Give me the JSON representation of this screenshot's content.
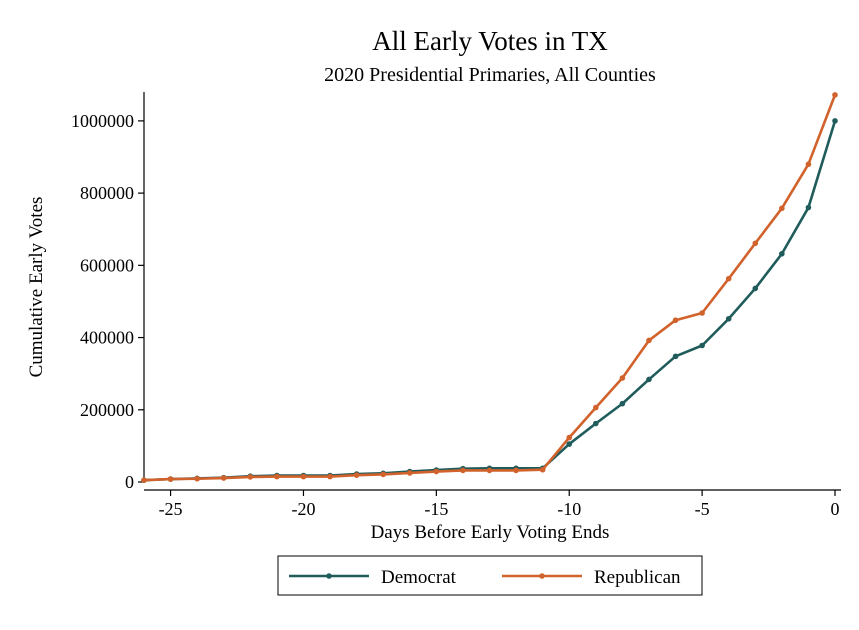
{
  "chart_data": {
    "type": "line",
    "title": "All Early Votes in TX",
    "subtitle": "2020 Presidential Primaries, All Counties",
    "xlabel": "Days Before Early Voting Ends",
    "ylabel": "Cumulative Early Votes",
    "xlim": [
      -26,
      0
    ],
    "ylim": [
      0,
      1080000
    ],
    "xticks": [
      -25,
      -20,
      -15,
      -10,
      -5,
      0
    ],
    "yticks": [
      0,
      200000,
      400000,
      600000,
      800000,
      1000000
    ],
    "grid": false,
    "legend_position": "bottom",
    "x": [
      -26,
      -25,
      -24,
      -23,
      -22,
      -21,
      -20,
      -19,
      -18,
      -17,
      -16,
      -15,
      -14,
      -13,
      -12,
      -11,
      -10,
      -9,
      -8,
      -7,
      -6,
      -5,
      -4,
      -3,
      -2,
      -1,
      0
    ],
    "series": [
      {
        "name": "Democrat",
        "color": "#1f5c5b",
        "values": [
          5000,
          8000,
          10000,
          12000,
          16000,
          18000,
          18000,
          18000,
          22000,
          24000,
          29000,
          33000,
          37000,
          38000,
          38000,
          38000,
          105000,
          162000,
          217000,
          284000,
          348000,
          378000,
          452000,
          536000,
          632000,
          760000,
          1000000
        ]
      },
      {
        "name": "Republican",
        "color": "#d2622b",
        "values": [
          5000,
          8000,
          9000,
          11000,
          14000,
          15000,
          15000,
          15000,
          19000,
          21000,
          25000,
          29000,
          32000,
          32000,
          32000,
          34000,
          123000,
          206000,
          288000,
          392000,
          448000,
          468000,
          563000,
          661000,
          758000,
          880000,
          1072000
        ]
      }
    ]
  }
}
